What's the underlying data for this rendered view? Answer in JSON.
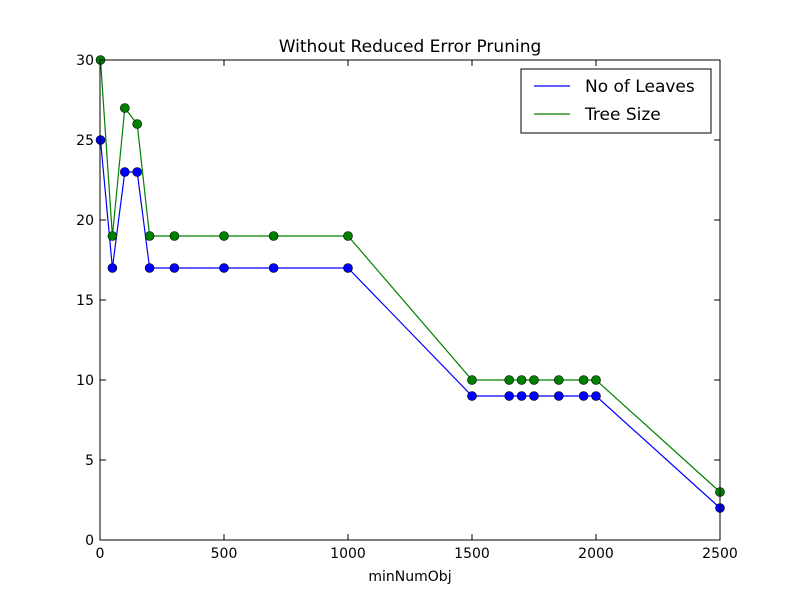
{
  "chart_data": {
    "type": "line",
    "title": "Without Reduced Error Pruning",
    "xlabel": "minNumObj",
    "ylabel": "",
    "xlim": [
      0,
      2500
    ],
    "ylim": [
      0,
      30
    ],
    "x_ticks": [
      0,
      500,
      1000,
      1500,
      2000,
      2500
    ],
    "y_ticks": [
      0,
      5,
      10,
      15,
      20,
      25,
      30
    ],
    "grid": false,
    "legend_position": "top-right",
    "x": [
      2,
      50,
      100,
      150,
      200,
      300,
      500,
      700,
      1000,
      1500,
      1650,
      1700,
      1750,
      1850,
      1950,
      2000,
      2500
    ],
    "series": [
      {
        "name": "No of Leaves",
        "color": "#0000ff",
        "values": [
          25,
          17,
          23,
          23,
          17,
          17,
          17,
          17,
          17,
          9,
          9,
          9,
          9,
          9,
          9,
          9,
          2
        ]
      },
      {
        "name": "Tree Size",
        "color": "#008000",
        "values": [
          30,
          19,
          27,
          26,
          19,
          19,
          19,
          19,
          19,
          10,
          10,
          10,
          10,
          10,
          10,
          10,
          3
        ]
      }
    ]
  }
}
